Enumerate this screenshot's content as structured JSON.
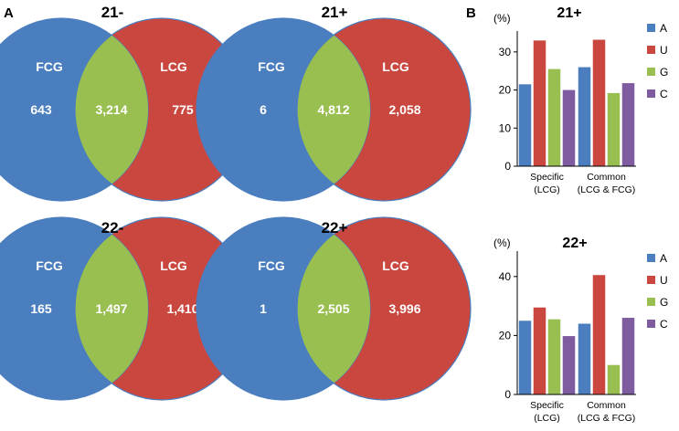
{
  "panels": {
    "a": "A",
    "b": "B"
  },
  "venn": {
    "colors": {
      "fcg": "#4a7ebf",
      "lcg": "#c9473f",
      "overlap": "#98bf50",
      "stroke": "#4a7ebf"
    },
    "diagrams": [
      {
        "title": "21-",
        "left_label": "FCG",
        "right_label": "LCG",
        "left_only": "643",
        "overlap": "3,214",
        "right_only": "775"
      },
      {
        "title": "21+",
        "left_label": "FCG",
        "right_label": "LCG",
        "left_only": "6",
        "overlap": "4,812",
        "right_only": "2,058"
      },
      {
        "title": "22-",
        "left_label": "FCG",
        "right_label": "LCG",
        "left_only": "165",
        "overlap": "1,497",
        "right_only": "1,410"
      },
      {
        "title": "22+",
        "left_label": "FCG",
        "right_label": "LCG",
        "left_only": "1",
        "overlap": "2,505",
        "right_only": "3,996"
      }
    ]
  },
  "chart_data": [
    {
      "type": "bar",
      "title": "21+",
      "ylabel": "(%)",
      "ylim": [
        0,
        35
      ],
      "yticks": [
        0,
        10,
        20,
        30
      ],
      "categories": [
        [
          "Specific",
          "(LCG)"
        ],
        [
          "Common",
          "(LCG & FCG)"
        ]
      ],
      "series": [
        {
          "name": "A",
          "color": "#4a7ebf",
          "values": [
            21.5,
            26
          ]
        },
        {
          "name": "U",
          "color": "#c9473f",
          "values": [
            33,
            33.2
          ]
        },
        {
          "name": "G",
          "color": "#98bf50",
          "values": [
            25.5,
            19.2
          ]
        },
        {
          "name": "C",
          "color": "#7f5ba0",
          "values": [
            20,
            21.8
          ]
        }
      ],
      "legend": "right"
    },
    {
      "type": "bar",
      "title": "22+",
      "ylabel": "(%)",
      "ylim": [
        0,
        48
      ],
      "yticks": [
        0,
        20,
        40
      ],
      "categories": [
        [
          "Specific",
          "(LCG)"
        ],
        [
          "Common",
          "(LCG & FCG)"
        ]
      ],
      "series": [
        {
          "name": "A",
          "color": "#4a7ebf",
          "values": [
            25,
            24
          ]
        },
        {
          "name": "U",
          "color": "#c9473f",
          "values": [
            29.5,
            40.5
          ]
        },
        {
          "name": "G",
          "color": "#98bf50",
          "values": [
            25.5,
            10
          ]
        },
        {
          "name": "C",
          "color": "#7f5ba0",
          "values": [
            19.8,
            26
          ]
        }
      ],
      "legend": "right"
    }
  ]
}
